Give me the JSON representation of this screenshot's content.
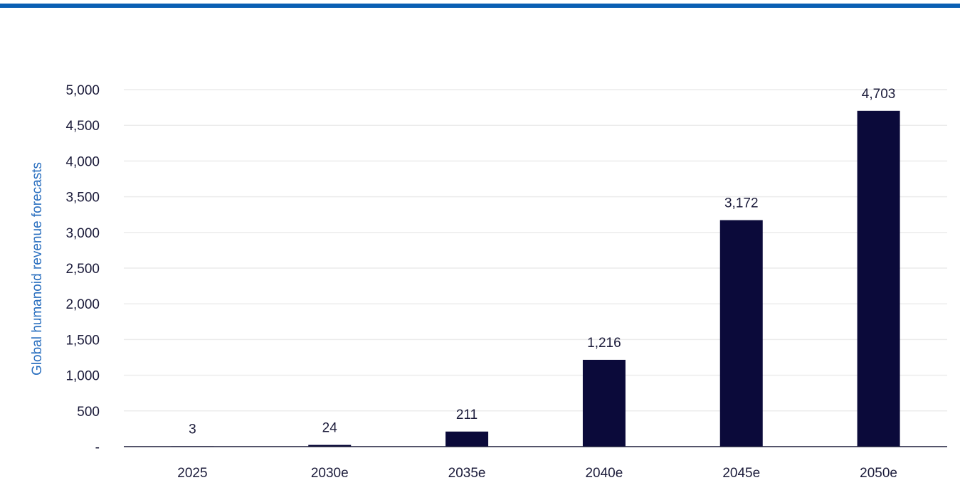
{
  "colors": {
    "top_rule": "#0a5fb3",
    "bar": "#0b0a3a",
    "axis_title": "#2a6fbf",
    "grid": "#ececec",
    "axis": "#1b1b3a"
  },
  "chart_data": {
    "type": "bar",
    "title": "",
    "xlabel": "",
    "ylabel": "Global humanoid revenue forecasts",
    "categories": [
      "2025",
      "2030e",
      "2035e",
      "2040e",
      "2045e",
      "2050e"
    ],
    "values": [
      3,
      24,
      211,
      1216,
      3172,
      4703
    ],
    "value_labels": [
      "3",
      "24",
      "211",
      "1,216",
      "3,172",
      "4,703"
    ],
    "ylim": [
      0,
      5000
    ],
    "yticks": [
      0,
      500,
      1000,
      1500,
      2000,
      2500,
      3000,
      3500,
      4000,
      4500,
      5000
    ],
    "ytick_labels": [
      "-",
      "500",
      "1,000",
      "1,500",
      "2,000",
      "2,500",
      "3,000",
      "3,500",
      "4,000",
      "4,500",
      "5,000"
    ],
    "grid": true,
    "legend": "none"
  }
}
